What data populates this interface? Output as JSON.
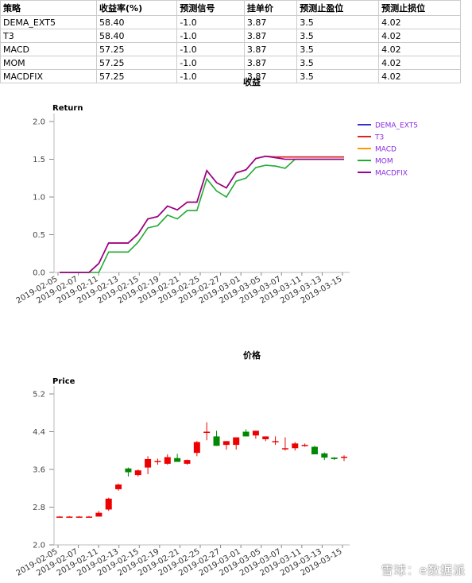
{
  "table": {
    "headers": [
      "策略",
      "收益率(%)",
      "预测信号",
      "挂单价",
      "预测止盈位",
      "预测止损位"
    ],
    "rows": [
      [
        "DEMA_EXT5",
        "58.40",
        "-1.0",
        "3.87",
        "3.5",
        "4.02"
      ],
      [
        "T3",
        "58.40",
        "-1.0",
        "3.87",
        "3.5",
        "4.02"
      ],
      [
        "MACD",
        "57.25",
        "-1.0",
        "3.87",
        "3.5",
        "4.02"
      ],
      [
        "MOM",
        "57.25",
        "-1.0",
        "3.87",
        "3.5",
        "4.02"
      ],
      [
        "MACDFIX",
        "57.25",
        "-1.0",
        "3.87",
        "3.5",
        "4.02"
      ]
    ]
  },
  "watermark": "雪球：e数据派",
  "chart_data": [
    {
      "type": "line",
      "title": "收益",
      "ylabel": "Return",
      "ylim": [
        0,
        2.0
      ],
      "yticks": [
        "0.0",
        "0.5",
        "1.0",
        "1.5",
        "2.0"
      ],
      "xtick_labels": [
        "2019-02-05",
        "2019-02-07",
        "2019-02-11",
        "2019-02-13",
        "2019-02-15",
        "2019-02-19",
        "2019-02-21",
        "2019-02-25",
        "2019-02-27",
        "2019-03-01",
        "2019-03-05",
        "2019-03-07",
        "2019-03-11",
        "2019-03-13",
        "2019-03-15"
      ],
      "legend_position": "right",
      "series": [
        {
          "name": "DEMA_EXT5",
          "color": "#3333cc",
          "values": [
            0,
            0,
            0,
            0,
            0.12,
            0.39,
            0.39,
            0.39,
            0.51,
            0.71,
            0.74,
            0.88,
            0.83,
            0.93,
            0.93,
            1.35,
            1.19,
            1.12,
            1.32,
            1.36,
            1.51,
            1.54,
            1.53,
            1.53,
            1.53,
            1.53,
            1.53,
            1.53,
            1.53,
            1.53
          ]
        },
        {
          "name": "T3",
          "color": "#dd2222",
          "values": [
            0,
            0,
            0,
            0,
            0.12,
            0.39,
            0.39,
            0.39,
            0.51,
            0.71,
            0.74,
            0.88,
            0.83,
            0.93,
            0.93,
            1.35,
            1.19,
            1.12,
            1.32,
            1.36,
            1.51,
            1.54,
            1.53,
            1.53,
            1.53,
            1.53,
            1.53,
            1.53,
            1.53,
            1.53
          ]
        },
        {
          "name": "MACD",
          "color": "#ff9900",
          "values": [
            0,
            0,
            0,
            0,
            0.12,
            0.39,
            0.39,
            0.39,
            0.51,
            0.71,
            0.74,
            0.88,
            0.83,
            0.93,
            0.93,
            1.35,
            1.19,
            1.12,
            1.32,
            1.36,
            1.51,
            1.54,
            1.52,
            1.5,
            1.5,
            1.5,
            1.5,
            1.5,
            1.5,
            1.5
          ]
        },
        {
          "name": "MOM",
          "color": "#22aa33",
          "values": [
            0,
            0,
            0,
            0,
            0,
            0.27,
            0.27,
            0.27,
            0.4,
            0.59,
            0.62,
            0.76,
            0.71,
            0.82,
            0.82,
            1.24,
            1.08,
            1.0,
            1.21,
            1.25,
            1.39,
            1.42,
            1.41,
            1.38,
            1.5,
            1.5,
            1.5,
            1.5,
            1.5,
            1.5
          ]
        },
        {
          "name": "MACDFIX",
          "color": "#990099",
          "values": [
            0,
            0,
            0,
            0,
            0.12,
            0.39,
            0.39,
            0.39,
            0.51,
            0.71,
            0.74,
            0.88,
            0.83,
            0.93,
            0.93,
            1.35,
            1.19,
            1.12,
            1.32,
            1.36,
            1.51,
            1.54,
            1.52,
            1.5,
            1.5,
            1.5,
            1.5,
            1.5,
            1.5,
            1.5
          ]
        }
      ]
    },
    {
      "type": "candlestick",
      "title": "价格",
      "ylabel": "Price",
      "ylim": [
        2.0,
        5.2
      ],
      "yticks": [
        "2.0",
        "2.8",
        "3.6",
        "4.4",
        "5.2"
      ],
      "xtick_labels": [
        "2019-02-05",
        "2019-02-07",
        "2019-02-11",
        "2019-02-13",
        "2019-02-15",
        "2019-02-19",
        "2019-02-21",
        "2019-02-25",
        "2019-02-27",
        "2019-03-01",
        "2019-03-05",
        "2019-03-07",
        "2019-03-11",
        "2019-03-13",
        "2019-03-15"
      ],
      "up_color": "#ee0000",
      "down_color": "#008800",
      "candles": [
        {
          "o": 2.6,
          "h": 2.61,
          "l": 2.59,
          "c": 2.6
        },
        {
          "o": 2.6,
          "h": 2.61,
          "l": 2.59,
          "c": 2.6
        },
        {
          "o": 2.6,
          "h": 2.61,
          "l": 2.59,
          "c": 2.6
        },
        {
          "o": 2.6,
          "h": 2.61,
          "l": 2.59,
          "c": 2.6
        },
        {
          "o": 2.6,
          "h": 2.72,
          "l": 2.6,
          "c": 2.68
        },
        {
          "o": 2.75,
          "h": 3.0,
          "l": 2.72,
          "c": 2.98
        },
        {
          "o": 3.18,
          "h": 3.3,
          "l": 3.15,
          "c": 3.28
        },
        {
          "o": 3.62,
          "h": 3.64,
          "l": 3.45,
          "c": 3.54
        },
        {
          "o": 3.48,
          "h": 3.6,
          "l": 3.45,
          "c": 3.58
        },
        {
          "o": 3.64,
          "h": 3.88,
          "l": 3.5,
          "c": 3.82
        },
        {
          "o": 3.77,
          "h": 3.83,
          "l": 3.7,
          "c": 3.78
        },
        {
          "o": 3.72,
          "h": 3.92,
          "l": 3.7,
          "c": 3.86
        },
        {
          "o": 3.84,
          "h": 3.93,
          "l": 3.76,
          "c": 3.76
        },
        {
          "o": 3.72,
          "h": 3.81,
          "l": 3.7,
          "c": 3.8
        },
        {
          "o": 3.95,
          "h": 4.2,
          "l": 3.88,
          "c": 4.18
        },
        {
          "o": 4.4,
          "h": 4.6,
          "l": 4.22,
          "c": 4.4
        },
        {
          "o": 4.3,
          "h": 4.42,
          "l": 4.1,
          "c": 4.1
        },
        {
          "o": 4.12,
          "h": 4.2,
          "l": 4.02,
          "c": 4.2
        },
        {
          "o": 4.12,
          "h": 4.28,
          "l": 4.02,
          "c": 4.28
        },
        {
          "o": 4.4,
          "h": 4.45,
          "l": 4.3,
          "c": 4.3
        },
        {
          "o": 4.32,
          "h": 4.42,
          "l": 4.25,
          "c": 4.42
        },
        {
          "o": 4.24,
          "h": 4.3,
          "l": 4.2,
          "c": 4.3
        },
        {
          "o": 4.18,
          "h": 4.3,
          "l": 4.12,
          "c": 4.2
        },
        {
          "o": 4.03,
          "h": 4.28,
          "l": 4.0,
          "c": 4.05
        },
        {
          "o": 4.05,
          "h": 4.18,
          "l": 4.0,
          "c": 4.15
        },
        {
          "o": 4.12,
          "h": 4.15,
          "l": 4.08,
          "c": 4.12
        },
        {
          "o": 4.08,
          "h": 4.1,
          "l": 3.92,
          "c": 3.92
        },
        {
          "o": 3.94,
          "h": 3.96,
          "l": 3.8,
          "c": 3.85
        },
        {
          "o": 3.85,
          "h": 3.86,
          "l": 3.8,
          "c": 3.82
        },
        {
          "o": 3.86,
          "h": 3.9,
          "l": 3.78,
          "c": 3.87
        }
      ]
    }
  ]
}
